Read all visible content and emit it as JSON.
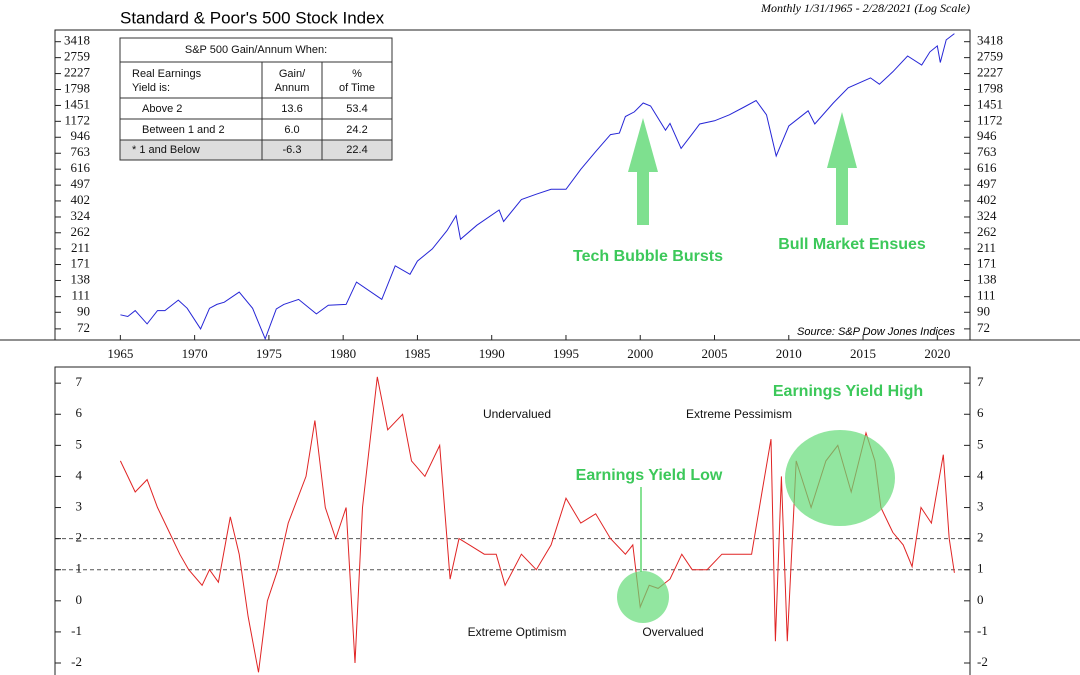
{
  "chart_data": [
    {
      "type": "line",
      "title": "Standard & Poor's 500 Stock Index",
      "subtitle": "Monthly 1/31/1965 - 2/28/2021 (Log Scale)",
      "source": "Source: S&P Dow Jones Indices",
      "log_scale": true,
      "color": "#2626d6",
      "x": [
        1965.0,
        1965.5,
        1966.0,
        1966.8,
        1967.5,
        1968.0,
        1968.9,
        1969.5,
        1970.4,
        1971.0,
        1971.5,
        1972.0,
        1973.0,
        1973.9,
        1974.75,
        1975.5,
        1976.0,
        1977.0,
        1978.2,
        1979.0,
        1980.2,
        1980.9,
        1982.6,
        1983.5,
        1984.5,
        1985.0,
        1986.0,
        1987.0,
        1987.6,
        1987.9,
        1989.0,
        1990.5,
        1990.8,
        1992.0,
        1993.0,
        1994.0,
        1995.0,
        1996.0,
        1997.0,
        1998.0,
        1998.6,
        1999.0,
        1999.6,
        2000.2,
        2000.7,
        2001.7,
        2002.0,
        2002.75,
        2003.5,
        2004.0,
        2005.0,
        2006.0,
        2007.0,
        2007.8,
        2008.5,
        2009.15,
        2010.0,
        2011.3,
        2011.75,
        2013.0,
        2014.0,
        2015.5,
        2016.1,
        2017.0,
        2018.0,
        2018.95,
        2019.5,
        2020.0,
        2020.2,
        2020.6,
        2021.15
      ],
      "values": [
        87,
        85,
        92,
        77,
        92,
        92,
        106,
        95,
        72,
        95,
        100,
        103,
        118,
        95,
        63,
        94,
        100,
        107,
        88,
        99,
        100,
        135,
        107,
        168,
        150,
        179,
        211,
        270,
        330,
        240,
        290,
        356,
        305,
        410,
        440,
        470,
        470,
        615,
        780,
        980,
        1000,
        1250,
        1330,
        1500,
        1440,
        1040,
        1140,
        815,
        990,
        1130,
        1180,
        1280,
        1420,
        1550,
        1280,
        735,
        1100,
        1350,
        1130,
        1500,
        1840,
        2100,
        1930,
        2280,
        2820,
        2500,
        2980,
        3230,
        2585,
        3500,
        3811
      ],
      "xlim": [
        1960.6,
        2022.2
      ],
      "xticks": [
        1965,
        1970,
        1975,
        1980,
        1985,
        1990,
        1995,
        2000,
        2005,
        2010,
        2015,
        2020
      ],
      "ylim": [
        62,
        4000
      ],
      "yticks": [
        72,
        90,
        111,
        138,
        171,
        211,
        262,
        324,
        402,
        497,
        616,
        763,
        946,
        1172,
        1451,
        1798,
        2227,
        2759,
        3418
      ],
      "annotations": [
        "Tech Bubble Bursts",
        "Bull Market Ensues"
      ]
    },
    {
      "type": "line",
      "color": "#e02424",
      "x": [
        1965.0,
        1965.5,
        1966.0,
        1966.8,
        1967.5,
        1968.3,
        1969.0,
        1969.6,
        1970.5,
        1971.0,
        1971.6,
        1972.4,
        1973.0,
        1973.6,
        1974.3,
        1974.9,
        1975.6,
        1976.3,
        1977.5,
        1978.1,
        1978.8,
        1979.5,
        1980.2,
        1980.8,
        1981.3,
        1982.3,
        1983.0,
        1984.0,
        1984.6,
        1985.5,
        1986.5,
        1987.2,
        1987.8,
        1988.5,
        1989.5,
        1990.3,
        1990.9,
        1992.0,
        1993.0,
        1994.0,
        1995.0,
        1996.0,
        1997.0,
        1998.0,
        1999.0,
        1999.5,
        2000.0,
        2000.6,
        2001.2,
        2002.0,
        2002.8,
        2003.5,
        2004.5,
        2005.5,
        2006.5,
        2007.5,
        2008.2,
        2008.8,
        2009.1,
        2009.5,
        2009.9,
        2010.5,
        2011.5,
        2012.5,
        2013.3,
        2014.2,
        2015.2,
        2015.8,
        2016.2,
        2017.0,
        2017.7,
        2018.3,
        2018.9,
        2019.6,
        2020.4,
        2020.8,
        2021.15
      ],
      "values": [
        4.5,
        4.0,
        3.5,
        3.9,
        3.0,
        2.2,
        1.5,
        1.0,
        0.5,
        1.0,
        0.6,
        2.7,
        1.5,
        -0.5,
        -2.3,
        0.0,
        1.0,
        2.5,
        4.0,
        5.8,
        3.0,
        2.0,
        3.0,
        -2.0,
        3.0,
        7.2,
        5.5,
        6.0,
        4.5,
        4.0,
        5.0,
        0.7,
        2.0,
        1.8,
        1.5,
        1.5,
        0.5,
        1.5,
        1.0,
        1.8,
        3.3,
        2.5,
        2.8,
        2.0,
        1.5,
        1.8,
        -0.2,
        0.5,
        0.4,
        0.7,
        1.5,
        1.0,
        1.0,
        1.5,
        1.5,
        1.5,
        3.5,
        5.2,
        -1.3,
        4.0,
        -1.3,
        4.5,
        3.0,
        4.5,
        5.0,
        3.5,
        5.4,
        4.5,
        3.0,
        2.2,
        1.8,
        1.1,
        3.0,
        2.5,
        4.7,
        2.0,
        0.9
      ],
      "xlim": [
        1960.6,
        2022.2
      ],
      "ylim": [
        -2.45,
        7.52
      ],
      "yticks": [
        -2,
        -1,
        0,
        1,
        2,
        3,
        4,
        5,
        6,
        7
      ],
      "reference_lines": [
        2,
        1
      ],
      "annotations": [
        "Earnings Yield Low",
        "Earnings Yield High",
        "Undervalued",
        "Extreme Pessimism",
        "Extreme Optimism",
        "Overvalued"
      ]
    }
  ],
  "table": {
    "title": "S&P 500 Gain/Annum When:",
    "header": [
      [
        "Real Earnings",
        "Yield is:"
      ],
      [
        "Gain/",
        "Annum"
      ],
      [
        "%",
        "of Time"
      ]
    ],
    "rows": [
      [
        "Above 2",
        "13.6",
        "53.4"
      ],
      [
        "Between 1 and 2",
        "6.0",
        "24.2"
      ],
      [
        "* 1 and Below",
        "-6.3",
        "22.4"
      ]
    ]
  }
}
